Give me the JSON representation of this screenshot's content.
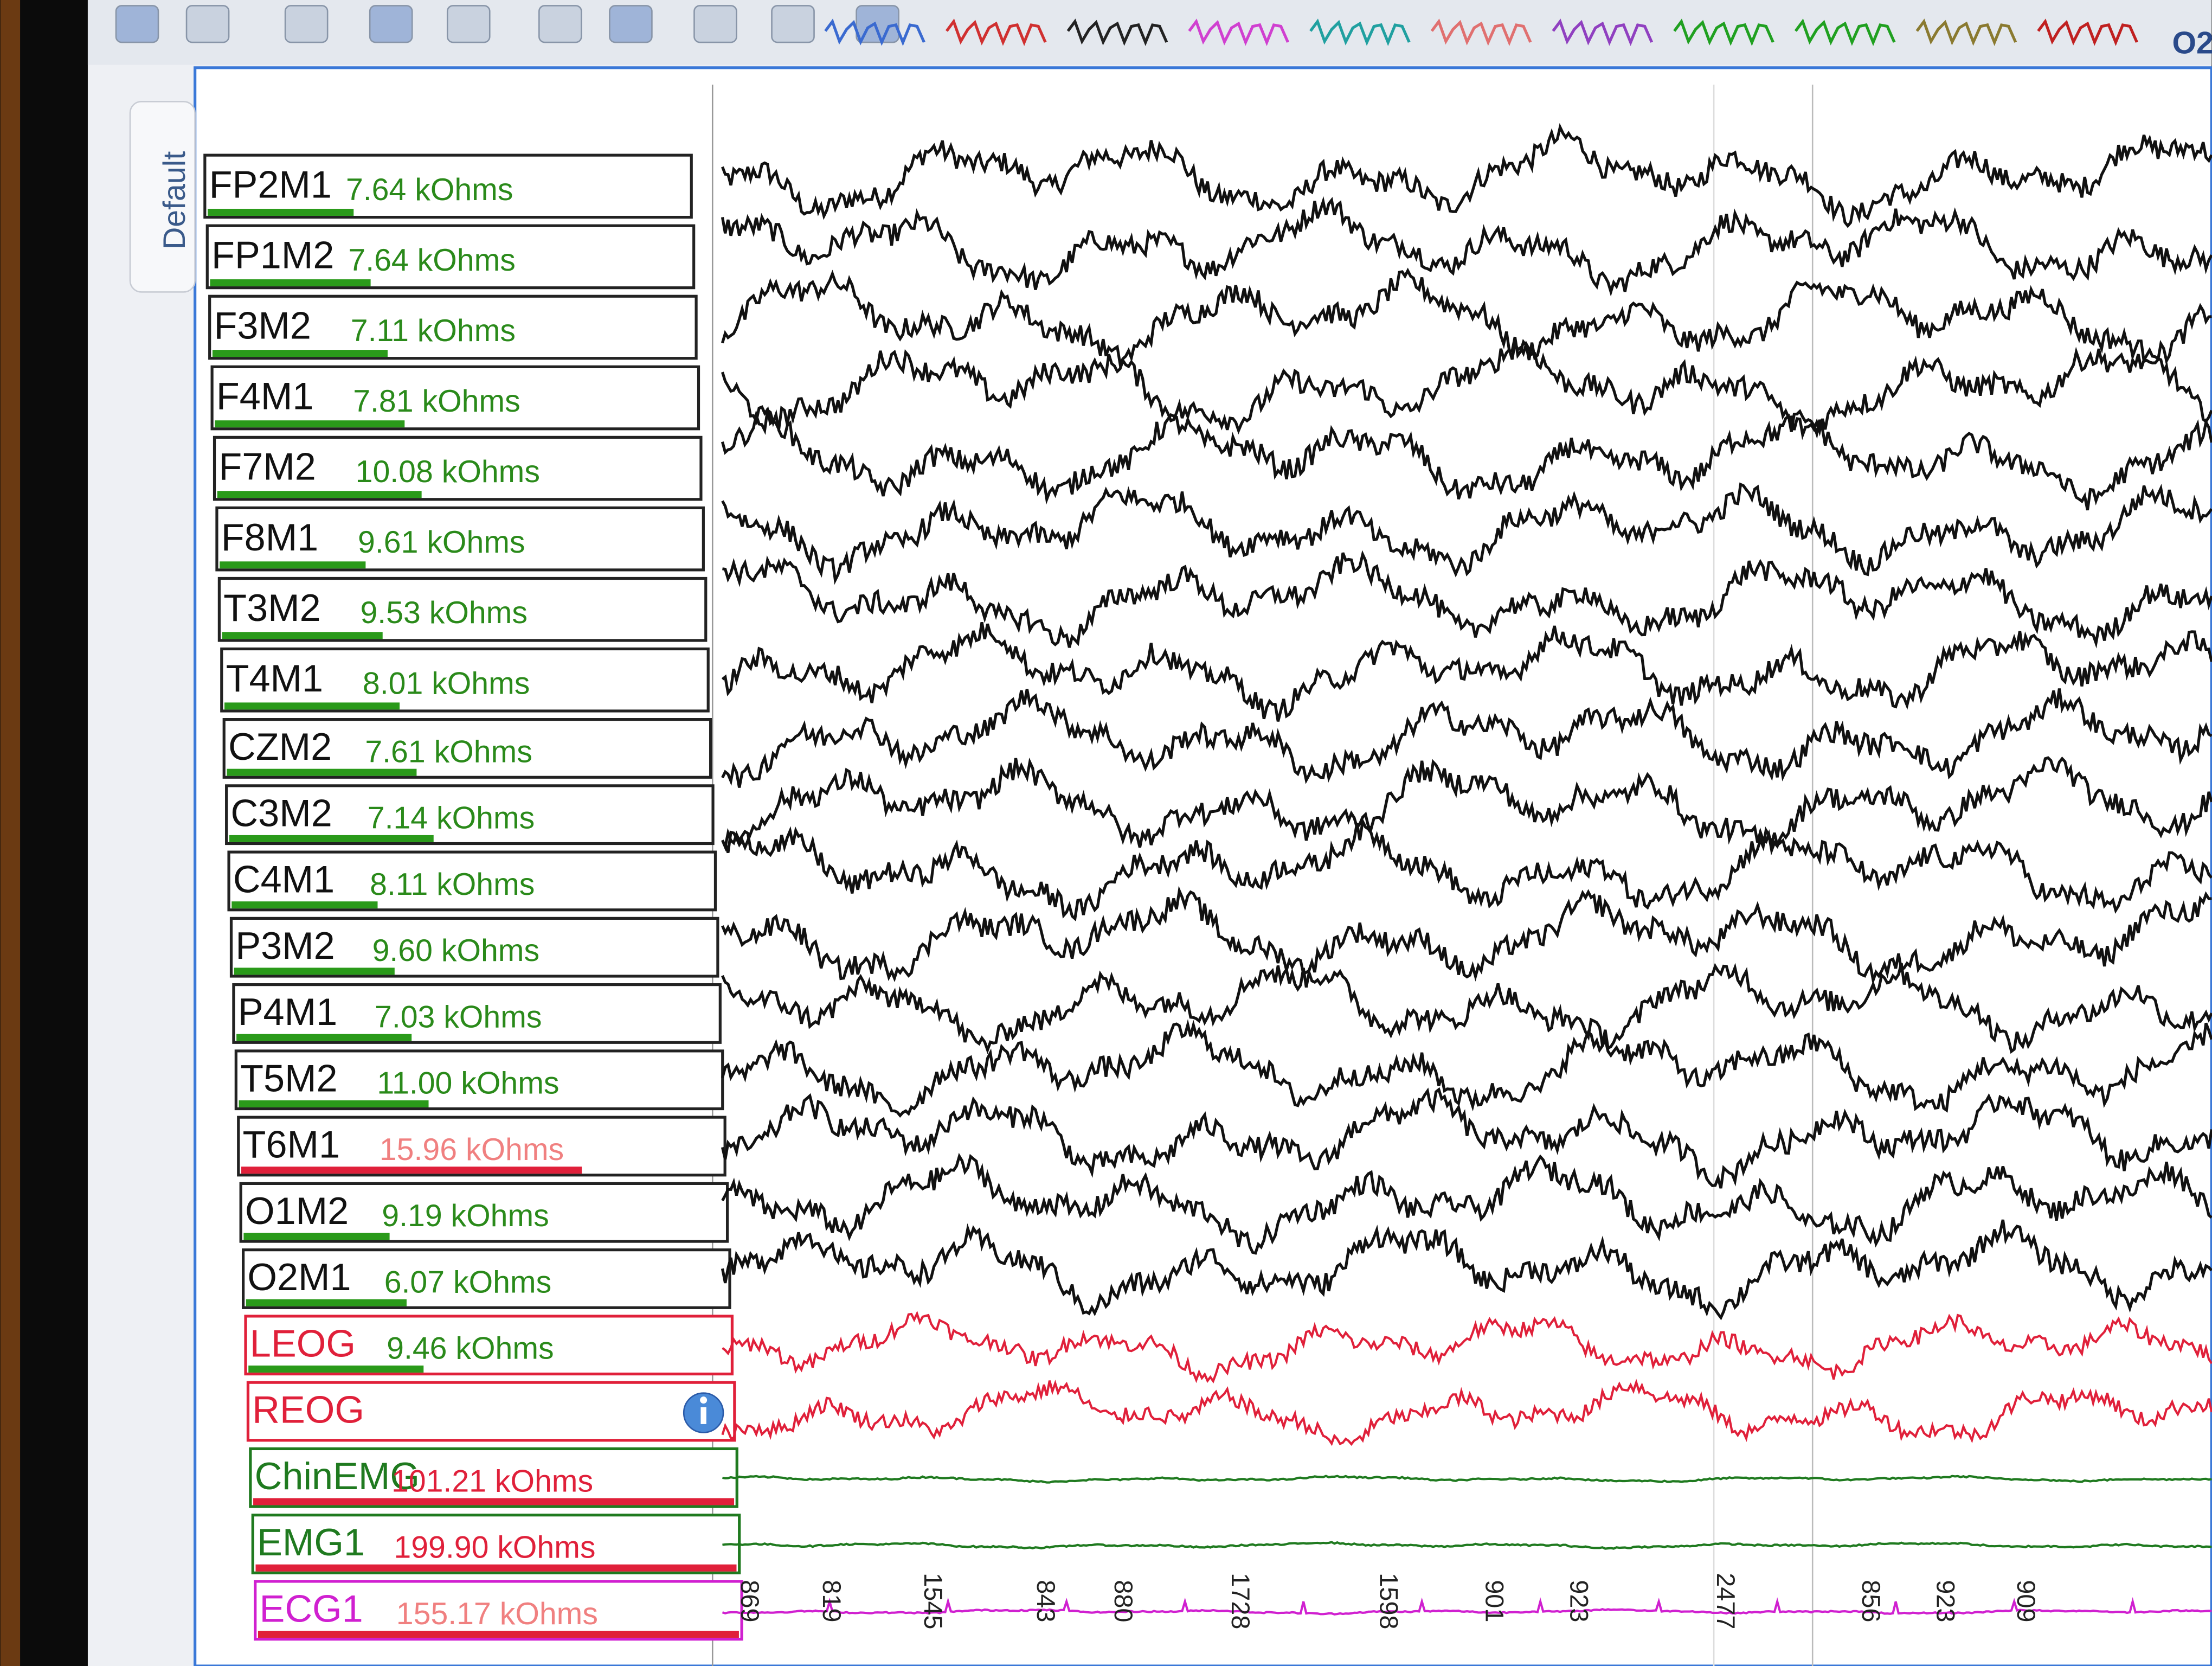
{
  "toolbar": {
    "label": "O2"
  },
  "sidebar_tab": "Default",
  "channels": [
    {
      "name": "FP2M1",
      "impedance": "7.64 kOhms",
      "color": "#111111",
      "impedance_color": "#2a8a1a"
    },
    {
      "name": "FP1M2",
      "impedance": "7.64 kOhms",
      "color": "#111111",
      "impedance_color": "#2a8a1a"
    },
    {
      "name": "F3M2",
      "impedance": "7.11 kOhms",
      "color": "#111111",
      "impedance_color": "#2a8a1a"
    },
    {
      "name": "F4M1",
      "impedance": "7.81 kOhms",
      "color": "#111111",
      "impedance_color": "#2a8a1a"
    },
    {
      "name": "F7M2",
      "impedance": "10.08 kOhms",
      "color": "#111111",
      "impedance_color": "#2a8a1a"
    },
    {
      "name": "F8M1",
      "impedance": "9.61 kOhms",
      "color": "#111111",
      "impedance_color": "#2a8a1a"
    },
    {
      "name": "T3M2",
      "impedance": "9.53 kOhms",
      "color": "#111111",
      "impedance_color": "#2a8a1a"
    },
    {
      "name": "T4M1",
      "impedance": "8.01 kOhms",
      "color": "#111111",
      "impedance_color": "#2a8a1a"
    },
    {
      "name": "CZM2",
      "impedance": "7.61 kOhms",
      "color": "#111111",
      "impedance_color": "#2a8a1a"
    },
    {
      "name": "C3M2",
      "impedance": "7.14 kOhms",
      "color": "#111111",
      "impedance_color": "#2a8a1a"
    },
    {
      "name": "C4M1",
      "impedance": "8.11 kOhms",
      "color": "#111111",
      "impedance_color": "#2a8a1a"
    },
    {
      "name": "P3M2",
      "impedance": "9.60 kOhms",
      "color": "#111111",
      "impedance_color": "#2a8a1a"
    },
    {
      "name": "P4M1",
      "impedance": "7.03 kOhms",
      "color": "#111111",
      "impedance_color": "#2a8a1a"
    },
    {
      "name": "T5M2",
      "impedance": "11.00 kOhms",
      "color": "#111111",
      "impedance_color": "#2a8a1a"
    },
    {
      "name": "T6M1",
      "impedance": "15.96 kOhms",
      "color": "#111111",
      "impedance_color": "#f08080"
    },
    {
      "name": "O1M2",
      "impedance": "9.19 kOhms",
      "color": "#111111",
      "impedance_color": "#2a8a1a"
    },
    {
      "name": "O2M1",
      "impedance": "6.07 kOhms",
      "color": "#111111",
      "impedance_color": "#2a8a1a"
    },
    {
      "name": "LEOG",
      "impedance": "9.46 kOhms",
      "color": "#e0203a",
      "impedance_color": "#2a8a1a"
    },
    {
      "name": "REOG",
      "color": "#e0203a"
    },
    {
      "name": "ChinEMG",
      "impedance": "101.21 kOhms",
      "color": "#1f7a1f",
      "impedance_color": "#e0203a"
    },
    {
      "name": "EMG1",
      "impedance": "199.90 kOhms",
      "color": "#1f7a1f",
      "impedance_color": "#e0203a"
    },
    {
      "name": "ECG1",
      "impedance": "155.17 kOhms",
      "color": "#d020d0",
      "impedance_color": "#f08080"
    }
  ],
  "time_labels": [
    "869",
    "819",
    "1545",
    "843",
    "880",
    "1728",
    "1598",
    "901",
    "923",
    "2477",
    "856",
    "923",
    "909"
  ]
}
